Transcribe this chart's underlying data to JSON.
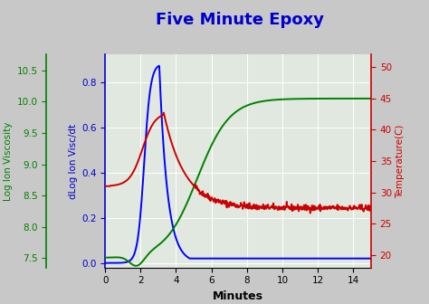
{
  "title": "Five Minute Epoxy",
  "title_color": "#0000cc",
  "title_fontsize": 13,
  "xlabel": "Minutes",
  "xlabel_fontsize": 9,
  "background_color": "#c8c8c8",
  "plot_bg_color": "#e0e8e0",
  "grid_color": "#ffffff",
  "left_ax_label": "dLog Ion Visc/dt",
  "left_ax_color": "#0000cc",
  "left_ylim": [
    -0.02,
    0.92
  ],
  "left_yticks": [
    0.0,
    0.2,
    0.4,
    0.6,
    0.8
  ],
  "mid_ax_label": "Log Ion Viscosity",
  "mid_ax_color": "#008000",
  "mid_ylim": [
    7.35,
    10.75
  ],
  "mid_yticks": [
    7.5,
    8.0,
    8.5,
    9.0,
    9.5,
    10.0,
    10.5
  ],
  "right_ax_label": "Temperature(C)",
  "right_ax_color": "#cc0000",
  "right_ylim": [
    18,
    52
  ],
  "right_yticks": [
    20,
    25,
    30,
    35,
    40,
    45,
    50
  ],
  "xlim": [
    0,
    15
  ],
  "xticks": [
    0,
    2,
    4,
    6,
    8,
    10,
    12,
    14
  ],
  "blue_color": "#0000ff",
  "green_color": "#008000",
  "red_color": "#cc0000",
  "line_width": 1.4
}
